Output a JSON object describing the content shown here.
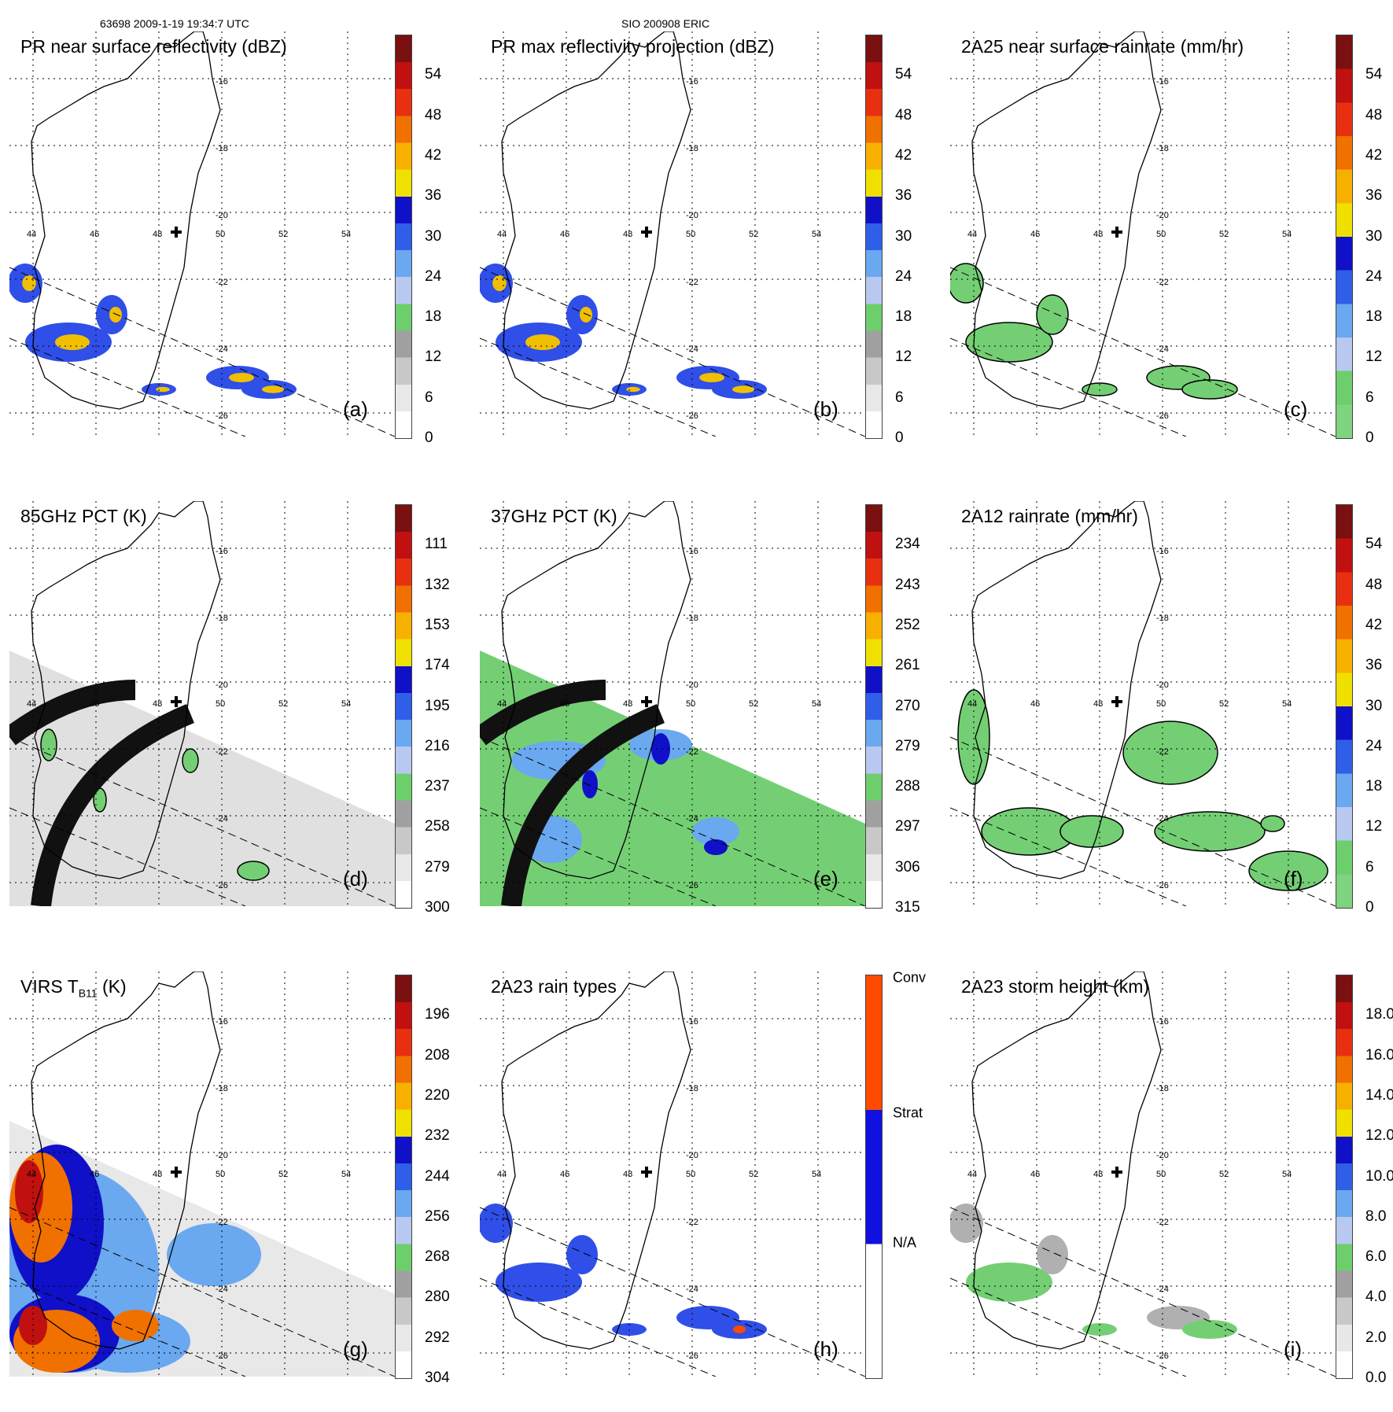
{
  "header": {
    "left": "63698 2009-1-19 19:34:7 UTC",
    "middle": "SIO 200908 ERIC"
  },
  "map_labels": {
    "lon": [
      "44",
      "46",
      "48",
      "50",
      "52",
      "54"
    ],
    "lat": [
      "-16",
      "-18",
      "-20",
      "-22",
      "-24",
      "-26"
    ]
  },
  "panels": [
    {
      "title": "PR near surface reflectivity (dBZ)",
      "tag": "(a)",
      "colorbar": [
        "0",
        "6",
        "12",
        "18",
        "24",
        "30",
        "36",
        "42",
        "48",
        "54"
      ],
      "palette": "refl"
    },
    {
      "title": "PR max reflectivity projection (dBZ)",
      "tag": "(b)",
      "colorbar": [
        "0",
        "6",
        "12",
        "18",
        "24",
        "30",
        "36",
        "42",
        "48",
        "54"
      ],
      "palette": "refl"
    },
    {
      "title": "2A25 near surface rainrate (mm/hr)",
      "tag": "(c)",
      "colorbar": [
        "0",
        "6",
        "12",
        "18",
        "24",
        "30",
        "36",
        "42",
        "48",
        "54"
      ],
      "palette": "rain"
    },
    {
      "title": "85GHz PCT (K)",
      "tag": "(d)",
      "colorbar": [
        "300",
        "279",
        "258",
        "237",
        "216",
        "195",
        "174",
        "153",
        "132",
        "111"
      ],
      "palette": "refl"
    },
    {
      "title": "37GHz PCT (K)",
      "tag": "(e)",
      "colorbar": [
        "315",
        "306",
        "297",
        "288",
        "279",
        "270",
        "261",
        "252",
        "243",
        "234"
      ],
      "palette": "refl"
    },
    {
      "title": "2A12 rainrate (mm/hr)",
      "tag": "(f)",
      "colorbar": [
        "0",
        "6",
        "12",
        "18",
        "24",
        "30",
        "36",
        "42",
        "48",
        "54"
      ],
      "palette": "rain"
    },
    {
      "title": "VIRS T",
      "title_sub": "B11",
      "title_tail": " (K)",
      "tag": "(g)",
      "colorbar": [
        "304",
        "292",
        "280",
        "268",
        "256",
        "244",
        "232",
        "220",
        "208",
        "196"
      ],
      "palette": "refl"
    },
    {
      "title": "2A23 rain types",
      "tag": "(h)",
      "colorbar": [
        "N/A",
        "Strat",
        "Conv"
      ],
      "palette": "types"
    },
    {
      "title": "2A23 storm height (km)",
      "tag": "(i)",
      "colorbar": [
        "0.0",
        "2.0",
        "4.0",
        "6.0",
        "8.0",
        "10.0",
        "12.0",
        "14.0",
        "16.0",
        "18.0"
      ],
      "palette": "refl"
    }
  ],
  "colors": {
    "refl": [
      "#ffffff",
      "#e8e8e8",
      "#c8c8c8",
      "#a0a0a0",
      "#6ccf6c",
      "#b8c8f0",
      "#6aa8f0",
      "#2f5fe8",
      "#1010c8",
      "#f0e000",
      "#f8b000",
      "#f07000",
      "#e83010",
      "#c01010",
      "#7a1010"
    ],
    "rain": [
      "#7fd47f",
      "#6ccf6c",
      "#b8c8f0",
      "#6aa8f0",
      "#2f5fe8",
      "#1010c8",
      "#f0e000",
      "#f8b000",
      "#f07000",
      "#e83010",
      "#c01010",
      "#7a1010"
    ],
    "types": [
      "#ffffff",
      "#1010e0",
      "#ff4a00"
    ],
    "green": "#74cf74",
    "blue": "#2f4fe8",
    "gold": "#f0c000",
    "lightgray": "#e0e0e0",
    "swath_dark": "#111111"
  }
}
